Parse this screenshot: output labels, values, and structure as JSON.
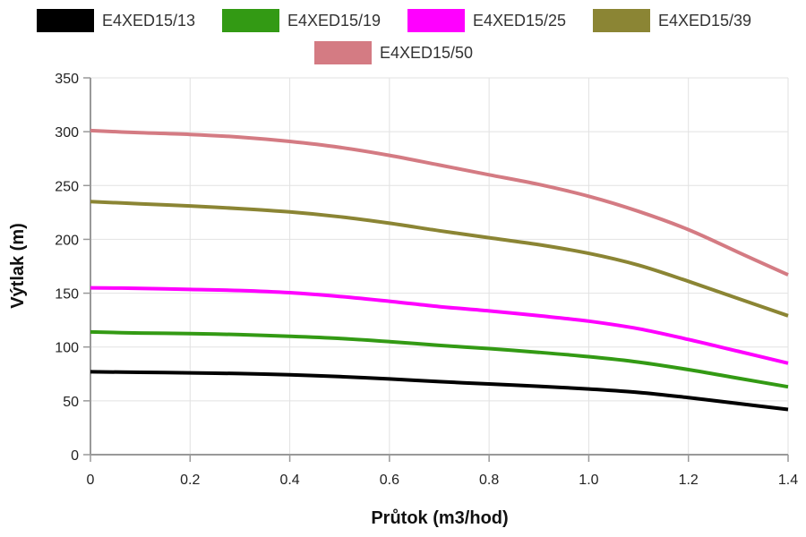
{
  "chart_data": {
    "type": "line",
    "xlabel": "Průtok (m3/hod)",
    "ylabel": "Výtlak (m)",
    "xlim": [
      0,
      1.4
    ],
    "ylim": [
      0,
      350
    ],
    "xticks": [
      "0",
      "0.2",
      "0.4",
      "0.6",
      "0.8",
      "1.0",
      "1.2",
      "1.4"
    ],
    "yticks": [
      "0",
      "50",
      "100",
      "150",
      "200",
      "250",
      "300",
      "350"
    ],
    "grid": true,
    "legend_position": "top",
    "x": [
      0,
      0.1,
      0.2,
      0.3,
      0.4,
      0.5,
      0.6,
      0.7,
      0.8,
      0.9,
      1.0,
      1.1,
      1.2,
      1.3,
      1.4
    ],
    "series": [
      {
        "name": "E4XED15/13",
        "color": "#000000",
        "values": [
          77,
          76.5,
          76,
          75.3,
          74.2,
          72.5,
          70.3,
          67.8,
          65.7,
          63.5,
          61,
          57.8,
          53,
          47.5,
          42
        ]
      },
      {
        "name": "E4XED15/19",
        "color": "#339a14",
        "values": [
          114,
          113,
          112.5,
          111.5,
          110,
          108,
          105,
          101.5,
          98.5,
          95,
          91,
          86,
          79,
          71,
          63
        ]
      },
      {
        "name": "E4XED15/25",
        "color": "#ff00ff",
        "values": [
          155,
          154.5,
          153.5,
          152.5,
          150.5,
          147,
          142.5,
          137.5,
          133.5,
          129,
          124,
          117,
          107,
          96,
          85
        ]
      },
      {
        "name": "E4XED15/39",
        "color": "#8b8534",
        "values": [
          235,
          233,
          231,
          228.5,
          225.5,
          221,
          215,
          208,
          201.5,
          195,
          187,
          176,
          161,
          145,
          129
        ]
      },
      {
        "name": "E4XED15/50",
        "color": "#d47b83",
        "values": [
          301,
          299,
          297.5,
          295,
          291,
          285.5,
          278,
          269,
          260,
          251,
          240,
          226,
          209,
          188,
          167
        ]
      }
    ]
  }
}
